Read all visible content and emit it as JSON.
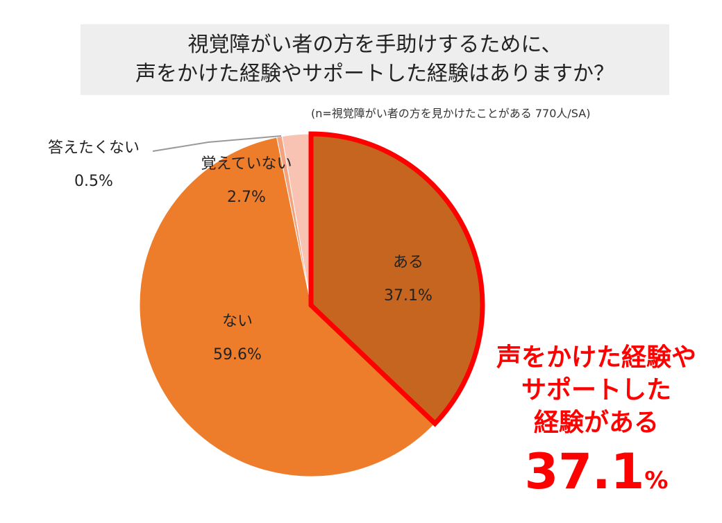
{
  "title": {
    "line1": "視覚障がい者の方を手助けするために、",
    "line2": "声をかけた経験やサポートした経験はありますか？"
  },
  "note": "(n=視覚障がい者の方を見かけたことがある 770人/SA)",
  "chart_data": {
    "type": "pie",
    "title": "視覚障がい者の方を手助けするために、声をかけた経験やサポートした経験はありますか？",
    "slices": [
      {
        "label": "ある",
        "value": 37.1,
        "value_label": "37.1%",
        "color": "#c5651f",
        "highlighted": true
      },
      {
        "label": "ない",
        "value": 59.6,
        "value_label": "59.6%",
        "color": "#ed7d2b"
      },
      {
        "label": "答えたくない",
        "value": 0.5,
        "value_label": "0.5%",
        "color": "#f2a27e"
      },
      {
        "label": "覚えていない",
        "value": 2.7,
        "value_label": "2.7%",
        "color": "#f8c3b2"
      }
    ],
    "highlight_color": "#ff0000"
  },
  "callout": {
    "line1": "声をかけた経験や",
    "line2": "サポートした",
    "line3": "経験がある",
    "value": "37.1",
    "unit": "%"
  }
}
